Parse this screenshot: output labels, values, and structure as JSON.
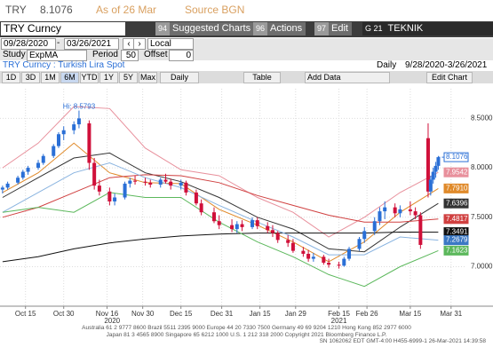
{
  "header": {
    "ticker": "TRY",
    "last_price": "8.1076",
    "as_of": "As of 26 Mar",
    "source": "Source BGN"
  },
  "toolbar": {
    "security": "TRY Curncy",
    "buttons": [
      {
        "num": "94",
        "label": "Suggested Charts"
      },
      {
        "num": "96",
        "label": "Actions"
      },
      {
        "num": "97",
        "label": "Edit"
      },
      {
        "num": "G 21",
        "label": "TEKNIK COZUMLEM..."
      }
    ]
  },
  "range": {
    "start": "09/28/2020",
    "end": "03/26/2021",
    "currency": "Local CCY"
  },
  "study": {
    "label": "Study",
    "name": "ExpMA",
    "period_label": "Period",
    "period": "50",
    "offset_label": "Offset",
    "offset": "0"
  },
  "title_bar": {
    "title": "TRY Curncy : Turkish Lira Spot",
    "frequency": "Daily",
    "range": "9/28/2020-3/26/2021"
  },
  "periods": [
    "1D",
    "3D",
    "1M",
    "6M",
    "YTD",
    "1Y",
    "5Y",
    "Max"
  ],
  "controls": {
    "frequency_menu": "Daily",
    "table": "Table",
    "add_data": "Add Data",
    "edit_chart": "Edit Chart"
  },
  "footer": [
    "Australia 61 2 9777 8600 Brazil 5511 2395 9000 Europe 44 20 7330 7500 Germany 49 69 9204 1210 Hong Kong 852 2977 6000",
    "Japan 81 3 4565 8900      Singapore 65 6212 1000      U.S. 1 212 318 2000      Copyright 2021 Bloomberg Finance L.P.",
    "SN 1062062 EDT  GMT-4:00 H455-6999-1 26-Mar-2021 14:39:58"
  ],
  "chart_data": {
    "type": "candlestick",
    "annotation": "Hi: 8.5793",
    "up_color": "#2a6fd6",
    "down_color": "#d0103a",
    "grid": true,
    "xlim": [
      "2020-10-05",
      "2021-04-06"
    ],
    "ylim": [
      6.6,
      8.8
    ],
    "yticks": [
      {
        "value": 8.5,
        "label": "8.5000"
      },
      {
        "value": 8,
        "label": "8.0000"
      },
      {
        "value": 7.5,
        "label": "7.5000"
      },
      {
        "value": 7,
        "label": "7.0000"
      }
    ],
    "xticks": [
      {
        "value": "2020-10-15",
        "label": "Oct 15"
      },
      {
        "value": "2020-10-30",
        "label": "Oct 30"
      },
      {
        "value": "2020-11-16",
        "label": "Nov 16"
      },
      {
        "value": "2020-11-30",
        "label": "Nov 30"
      },
      {
        "value": "2020-12-15",
        "label": "Dec 15"
      },
      {
        "value": "2020-12-31",
        "label": "Dec 31"
      },
      {
        "value": "2021-01-15",
        "label": "Jan 15"
      },
      {
        "value": "2021-01-29",
        "label": "Jan 29"
      },
      {
        "value": "2021-02-15",
        "label": "Feb 15"
      },
      {
        "value": "2021-02-26",
        "label": "Feb 26"
      },
      {
        "value": "2021-03-15",
        "label": "Mar 15"
      },
      {
        "value": "2021-03-31",
        "label": "Mar 31"
      }
    ],
    "year_labels": [
      {
        "value": "2020-11-18",
        "label": "2020"
      },
      {
        "value": "2021-02-15",
        "label": "2021"
      }
    ],
    "x": [
      "2020-10-06",
      "2020-10-08",
      "2020-10-12",
      "2020-10-14",
      "2020-10-16",
      "2020-10-20",
      "2020-10-22",
      "2020-10-26",
      "2020-10-28",
      "2020-10-30",
      "2020-11-03",
      "2020-11-05",
      "2020-11-09",
      "2020-11-11",
      "2020-11-13",
      "2020-11-17",
      "2020-11-19",
      "2020-11-23",
      "2020-11-25",
      "2020-11-27",
      "2020-12-01",
      "2020-12-03",
      "2020-12-07",
      "2020-12-09",
      "2020-12-11",
      "2020-12-15",
      "2020-12-17",
      "2020-12-21",
      "2020-12-23",
      "2020-12-28",
      "2020-12-30",
      "2021-01-04",
      "2021-01-06",
      "2021-01-08",
      "2021-01-12",
      "2021-01-14",
      "2021-01-18",
      "2021-01-20",
      "2021-01-22",
      "2021-01-26",
      "2021-01-28",
      "2021-02-01",
      "2021-02-03",
      "2021-02-05",
      "2021-02-09",
      "2021-02-11",
      "2021-02-15",
      "2021-02-17",
      "2021-02-19",
      "2021-02-23",
      "2021-02-25",
      "2021-03-01",
      "2021-03-03",
      "2021-03-05",
      "2021-03-09",
      "2021-03-11",
      "2021-03-15",
      "2021-03-17",
      "2021-03-19",
      "2021-03-22",
      "2021-03-23",
      "2021-03-24",
      "2021-03-25",
      "2021-03-26"
    ],
    "open": [
      7.78,
      7.8,
      7.85,
      7.9,
      7.96,
      8.0,
      8.05,
      8.12,
      8.22,
      8.34,
      8.38,
      8.44,
      8.45,
      8.05,
      7.82,
      7.76,
      7.66,
      7.7,
      7.84,
      7.87,
      7.86,
      7.85,
      7.83,
      7.88,
      7.86,
      7.82,
      7.85,
      7.75,
      7.64,
      7.55,
      7.46,
      7.42,
      7.38,
      7.43,
      7.4,
      7.47,
      7.41,
      7.37,
      7.34,
      7.27,
      7.24,
      7.16,
      7.13,
      7.08,
      7.1,
      7.04,
      7.02,
      7.01,
      7.08,
      7.18,
      7.28,
      7.36,
      7.46,
      7.56,
      7.6,
      7.54,
      7.58,
      7.56,
      7.52,
      8.3,
      7.76,
      7.88,
      7.96,
      8.02
    ],
    "high": [
      7.82,
      7.86,
      7.92,
      7.98,
      8.02,
      8.08,
      8.14,
      8.24,
      8.36,
      8.42,
      8.47,
      8.5793,
      8.48,
      8.1,
      7.88,
      7.8,
      7.74,
      7.86,
      7.9,
      7.92,
      7.9,
      7.88,
      7.9,
      7.94,
      7.89,
      7.88,
      7.87,
      7.78,
      7.68,
      7.6,
      7.52,
      7.48,
      7.46,
      7.47,
      7.5,
      7.5,
      7.45,
      7.42,
      7.36,
      7.32,
      7.28,
      7.2,
      7.17,
      7.14,
      7.12,
      7.08,
      7.05,
      7.1,
      7.2,
      7.3,
      7.4,
      7.5,
      7.6,
      7.66,
      7.64,
      7.62,
      7.66,
      7.6,
      7.55,
      8.45,
      7.92,
      8.0,
      8.06,
      8.12
    ],
    "low": [
      7.74,
      7.78,
      7.83,
      7.88,
      7.93,
      7.98,
      8.03,
      8.1,
      8.2,
      8.28,
      8.34,
      8.4,
      7.98,
      7.78,
      7.72,
      7.62,
      7.62,
      7.68,
      7.8,
      7.83,
      7.82,
      7.8,
      7.8,
      7.84,
      7.78,
      7.78,
      7.72,
      7.62,
      7.52,
      7.44,
      7.38,
      7.35,
      7.34,
      7.36,
      7.38,
      7.38,
      7.34,
      7.3,
      7.24,
      7.2,
      7.14,
      7.1,
      7.05,
      7.05,
      7.02,
      6.99,
      6.98,
      7.0,
      7.06,
      7.16,
      7.24,
      7.32,
      7.42,
      7.48,
      7.5,
      7.5,
      7.52,
      7.48,
      7.18,
      7.7,
      7.72,
      7.84,
      7.9,
      7.98
    ],
    "close": [
      7.8,
      7.84,
      7.9,
      7.96,
      8.0,
      8.05,
      8.12,
      8.22,
      8.34,
      8.38,
      8.44,
      8.5,
      8.05,
      7.82,
      7.76,
      7.66,
      7.7,
      7.84,
      7.87,
      7.86,
      7.85,
      7.83,
      7.88,
      7.86,
      7.82,
      7.85,
      7.75,
      7.64,
      7.55,
      7.46,
      7.42,
      7.38,
      7.43,
      7.4,
      7.47,
      7.41,
      7.37,
      7.34,
      7.27,
      7.24,
      7.16,
      7.13,
      7.08,
      7.1,
      7.04,
      7.02,
      7.01,
      7.08,
      7.18,
      7.28,
      7.36,
      7.46,
      7.56,
      7.6,
      7.54,
      7.58,
      7.56,
      7.52,
      7.22,
      7.76,
      7.88,
      7.96,
      8.02,
      8.1076
    ],
    "line_x": [
      "2020-10-06",
      "2020-10-20",
      "2020-11-03",
      "2020-11-17",
      "2020-12-01",
      "2020-12-15",
      "2020-12-30",
      "2021-01-14",
      "2021-01-28",
      "2021-02-11",
      "2021-02-25",
      "2021-03-11",
      "2021-03-26"
    ],
    "lines": [
      {
        "color": "#e8909c",
        "values": [
          8.0,
          8.25,
          8.62,
          8.6,
          8.2,
          7.98,
          7.92,
          7.7,
          7.55,
          7.3,
          7.5,
          7.75,
          7.9542
        ]
      },
      {
        "color": "#e08a2a",
        "values": [
          7.75,
          7.95,
          8.25,
          7.95,
          7.85,
          7.84,
          7.58,
          7.42,
          7.25,
          7.05,
          7.25,
          7.55,
          7.791
        ]
      },
      {
        "color": "#333333",
        "values": [
          7.7,
          7.9,
          8.1,
          8.15,
          7.95,
          7.86,
          7.7,
          7.5,
          7.38,
          7.18,
          7.15,
          7.4,
          7.6396
        ]
      },
      {
        "color": "#d04040",
        "values": [
          7.5,
          7.6,
          7.75,
          7.9,
          7.93,
          7.92,
          7.85,
          7.72,
          7.62,
          7.52,
          7.45,
          7.45,
          7.4817
        ]
      },
      {
        "color": "#111111",
        "values": [
          7.05,
          7.1,
          7.18,
          7.24,
          7.28,
          7.31,
          7.33,
          7.34,
          7.34,
          7.34,
          7.34,
          7.35,
          7.3491
        ]
      },
      {
        "color": "#8ab4e0",
        "values": [
          7.55,
          7.75,
          7.95,
          8.05,
          7.9,
          7.8,
          7.62,
          7.45,
          7.3,
          7.12,
          7.12,
          7.3,
          7.2679
        ]
      },
      {
        "color": "#5cb85c",
        "values": [
          7.55,
          7.6,
          7.55,
          7.75,
          7.7,
          7.7,
          7.45,
          7.25,
          7.1,
          6.92,
          6.8,
          7.0,
          7.1623
        ]
      }
    ],
    "price_tags": [
      {
        "value": 8.1076,
        "label": "8.1076",
        "color": "#2a6fd6"
      },
      {
        "value": 7.9542,
        "label": "7.9542",
        "color": "#e8909c"
      },
      {
        "value": 7.791,
        "label": "7.7910",
        "color": "#e08a2a"
      },
      {
        "value": 7.6396,
        "label": "7.6396",
        "color": "#333333"
      },
      {
        "value": 7.4817,
        "label": "7.4817",
        "color": "#d04040"
      },
      {
        "value": 7.3491,
        "label": "7.3491",
        "color": "#111111"
      },
      {
        "value": 7.2679,
        "label": "7.2679",
        "color": "#3b78c4"
      },
      {
        "value": 7.1623,
        "label": "7.1623",
        "color": "#5cb85c"
      }
    ]
  }
}
